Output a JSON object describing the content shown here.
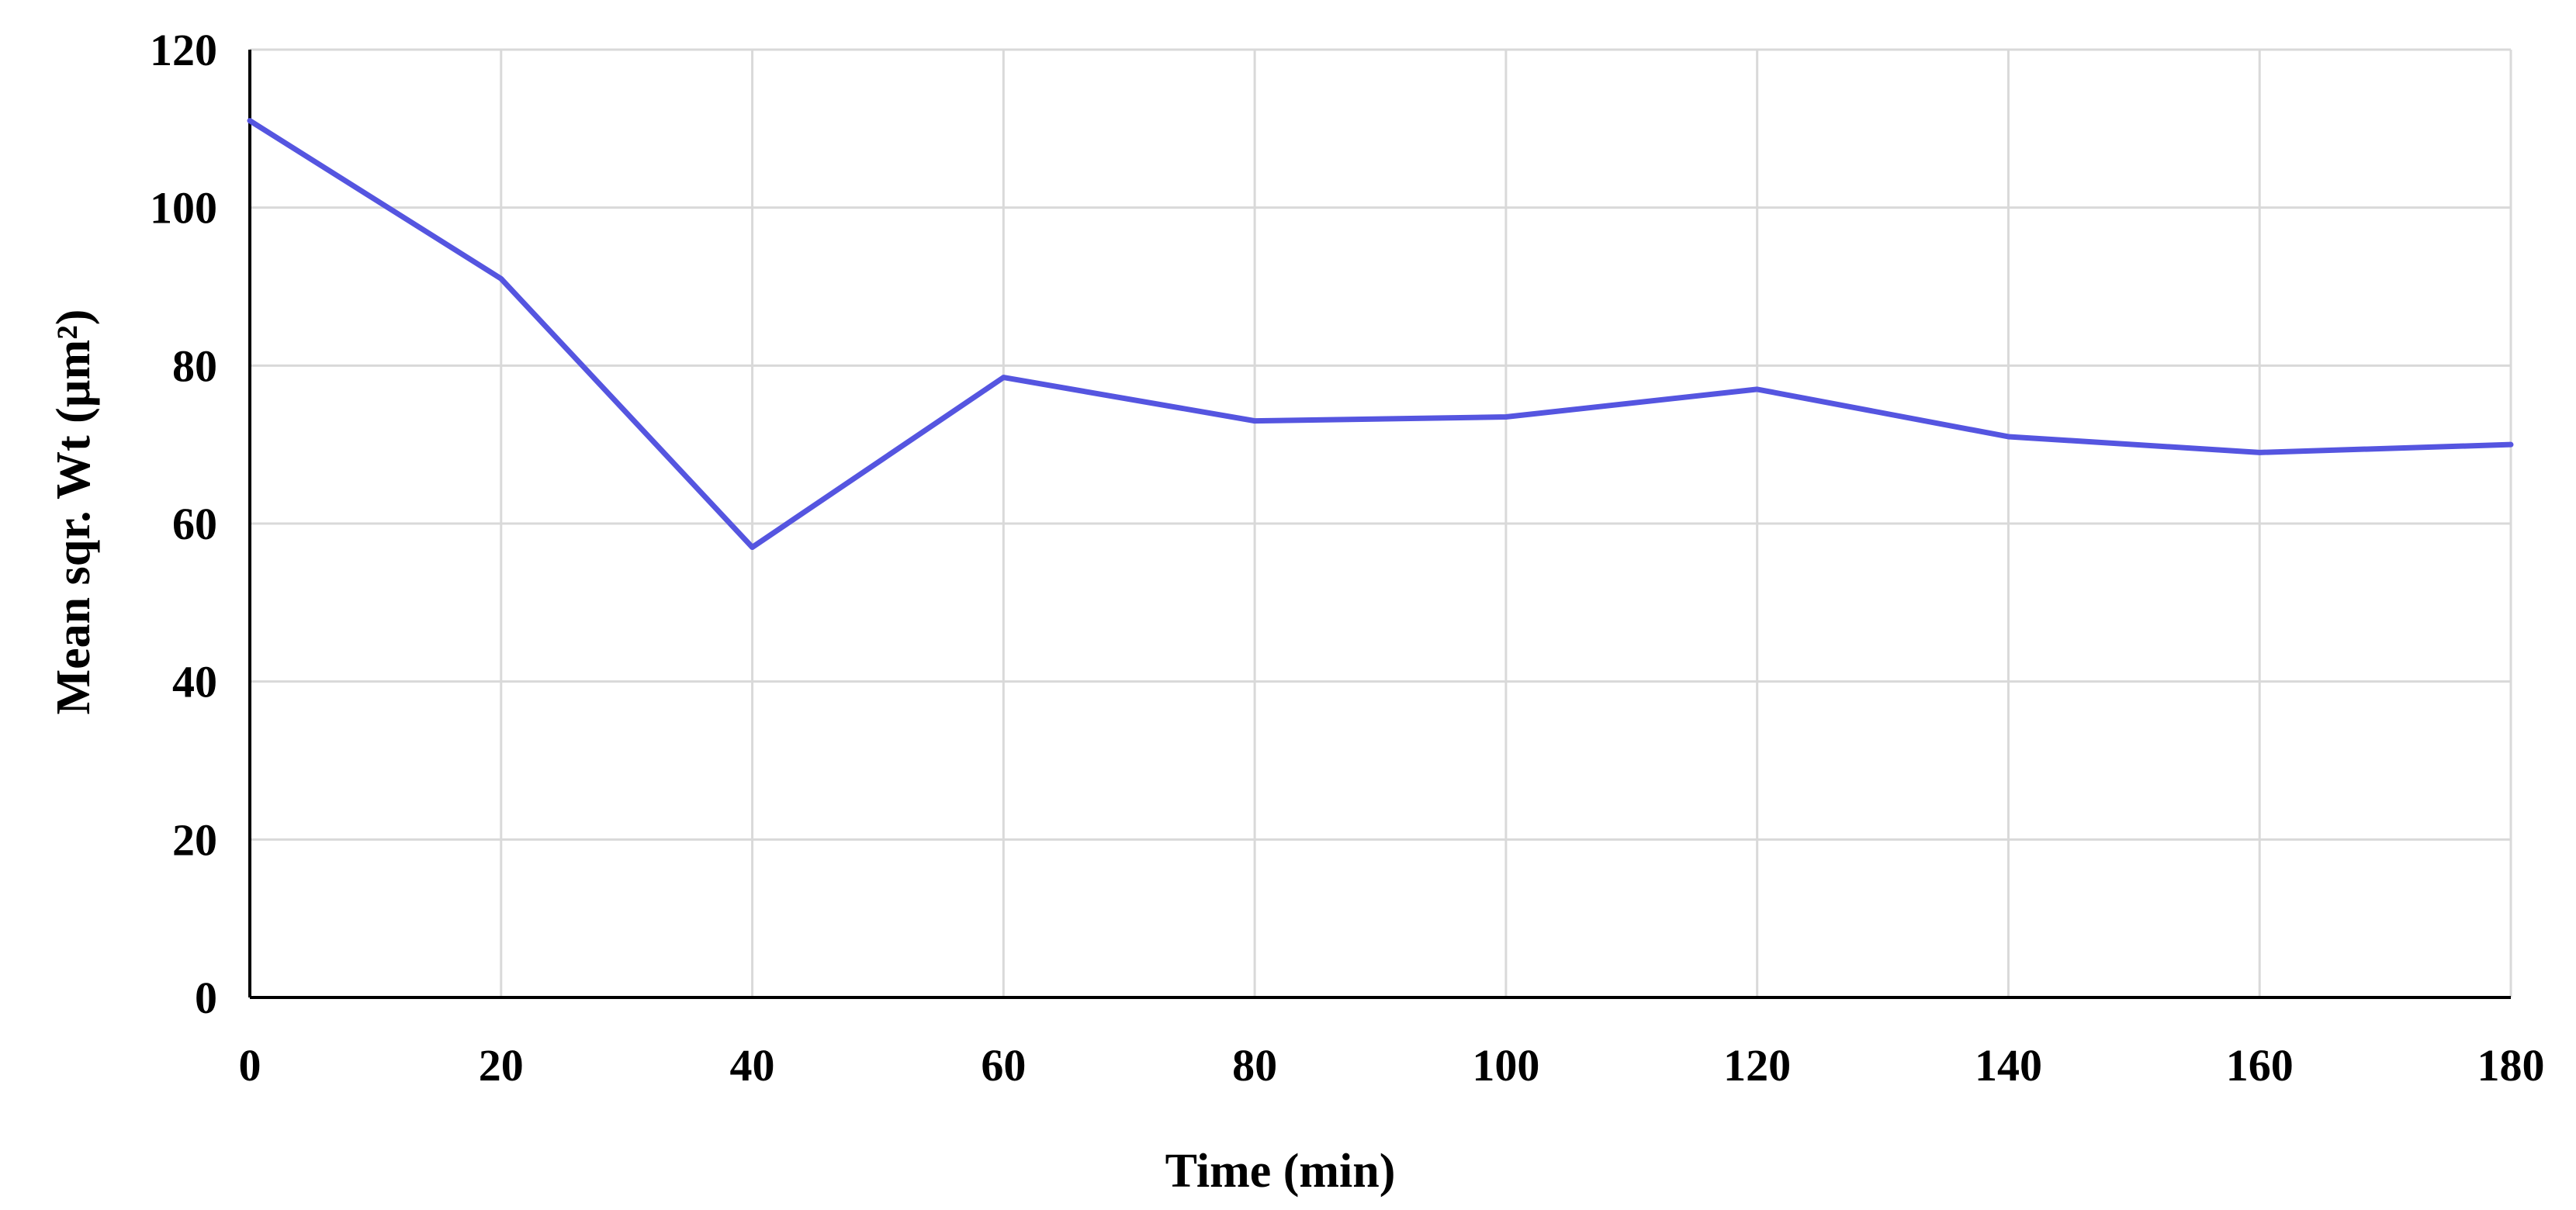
{
  "chart_data": {
    "type": "line",
    "title": "",
    "xlabel": "Time (min)",
    "ylabel": "Mean sqr. Wt (µm²)",
    "x": [
      0,
      20,
      40,
      60,
      80,
      100,
      120,
      140,
      160,
      180
    ],
    "series": [
      {
        "values": [
          111,
          91,
          57,
          78.5,
          73,
          73.5,
          77,
          71,
          69,
          70
        ],
        "color": "#5555e0"
      }
    ],
    "xlim": [
      0,
      180
    ],
    "ylim": [
      0,
      120
    ],
    "xticks": [
      "0",
      "20",
      "40",
      "60",
      "80",
      "100",
      "120",
      "140",
      "160",
      "180"
    ],
    "yticks": [
      "0",
      "20",
      "40",
      "60",
      "80",
      "100",
      "120"
    ],
    "grid": true,
    "legend": "none"
  }
}
